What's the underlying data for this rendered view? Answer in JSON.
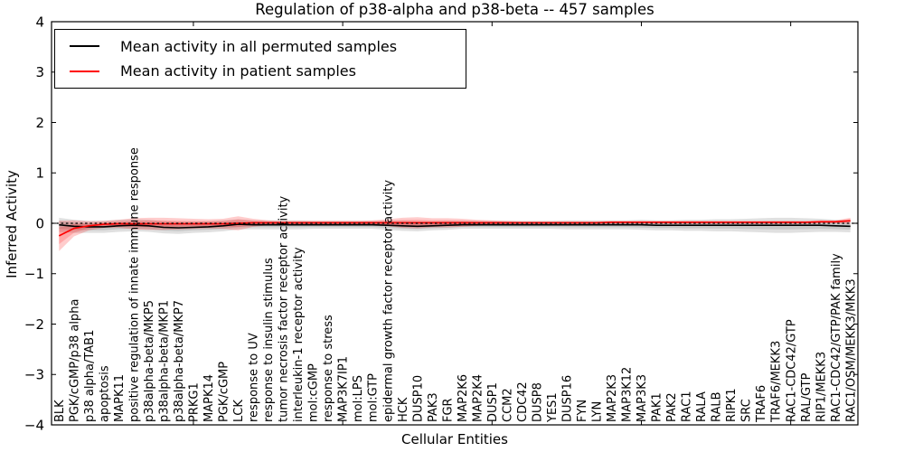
{
  "chart_data": {
    "type": "line",
    "title": "Regulation of p38-alpha and p38-beta -- 457 samples",
    "xlabel": "Cellular Entities",
    "ylabel": "Inferred Activity",
    "ylim": [
      -4,
      4
    ],
    "yticks": [
      -4,
      -3,
      -2,
      -1,
      0,
      1,
      2,
      3,
      4
    ],
    "x_major_tick_indices": [
      9,
      19,
      29,
      39,
      49
    ],
    "grid": false,
    "legend_position": "upper left",
    "zero_line": {
      "y": 0,
      "style": "dashed",
      "color": "#000000"
    },
    "categories": [
      "BLK",
      "PGK/cGMP/p38 alpha",
      "p38 alpha/TAB1",
      "apoptosis",
      "MAPK11",
      "positive regulation of innate immune response",
      "p38alpha-beta/MKP5",
      "p38alpha-beta/MKP1",
      "p38alpha-beta/MKP7",
      "PRKG1",
      "MAPK14",
      "PGK/cGMP",
      "LCK",
      "response to UV",
      "response to insulin stimulus",
      "tumor necrosis factor receptor activity",
      "interleukin-1 receptor activity",
      "mol:cGMP",
      "response to stress",
      "MAP3K7IP1",
      "mol:LPS",
      "mol:GTP",
      "epidermal growth factor receptor activity",
      "HCK",
      "DUSP10",
      "PAK3",
      "FGR",
      "MAP2K6",
      "MAP2K4",
      "DUSP1",
      "CCM2",
      "CDC42",
      "DUSP8",
      "YES1",
      "DUSP16",
      "FYN",
      "LYN",
      "MAP2K3",
      "MAP3K12",
      "MAP3K3",
      "PAK1",
      "PAK2",
      "RAC1",
      "RALA",
      "RALB",
      "RIPK1",
      "SRC",
      "TRAF6",
      "TRAF6/MEKK3",
      "RAC1-CDC42/GTP",
      "RAL/GTP",
      "RIP1/MEKK3",
      "RAC1-CDC42/GTP/PAK family",
      "RAC1/OSM/MEKK3/MKK3"
    ],
    "series": [
      {
        "name": "Mean activity in all permuted samples",
        "color": "#000000",
        "band_color": "#000000",
        "band_alpha": 0.12,
        "values": [
          -0.03,
          -0.06,
          -0.07,
          -0.07,
          -0.05,
          -0.04,
          -0.05,
          -0.08,
          -0.09,
          -0.08,
          -0.07,
          -0.05,
          -0.02,
          -0.03,
          -0.03,
          -0.03,
          -0.03,
          -0.03,
          -0.03,
          -0.03,
          -0.03,
          -0.03,
          -0.04,
          -0.05,
          -0.06,
          -0.05,
          -0.04,
          -0.03,
          -0.03,
          -0.03,
          -0.03,
          -0.03,
          -0.03,
          -0.03,
          -0.03,
          -0.03,
          -0.03,
          -0.03,
          -0.03,
          -0.03,
          -0.04,
          -0.04,
          -0.04,
          -0.04,
          -0.04,
          -0.04,
          -0.04,
          -0.04,
          -0.04,
          -0.04,
          -0.04,
          -0.04,
          -0.05,
          -0.06
        ],
        "std": [
          0.14,
          0.13,
          0.12,
          0.12,
          0.12,
          0.12,
          0.12,
          0.12,
          0.12,
          0.11,
          0.11,
          0.11,
          0.1,
          0.09,
          0.09,
          0.09,
          0.09,
          0.08,
          0.08,
          0.08,
          0.08,
          0.08,
          0.09,
          0.1,
          0.1,
          0.09,
          0.09,
          0.08,
          0.08,
          0.08,
          0.08,
          0.08,
          0.08,
          0.08,
          0.09,
          0.09,
          0.09,
          0.09,
          0.09,
          0.1,
          0.1,
          0.1,
          0.11,
          0.11,
          0.12,
          0.12,
          0.13,
          0.14,
          0.15,
          0.15,
          0.14,
          0.13,
          0.12,
          0.12
        ]
      },
      {
        "name": "Mean activity in patient samples",
        "color": "#ff0000",
        "band_color": "#ff0000",
        "band_alpha": 0.2,
        "values": [
          -0.25,
          -0.1,
          -0.05,
          -0.02,
          -0.01,
          -0.01,
          -0.01,
          -0.01,
          -0.01,
          -0.01,
          -0.01,
          -0.01,
          0.0,
          0.01,
          0.01,
          0.01,
          0.01,
          0.01,
          0.01,
          0.01,
          0.01,
          0.01,
          0.01,
          0.01,
          0.01,
          0.01,
          0.01,
          0.01,
          0.01,
          0.01,
          0.01,
          0.01,
          0.01,
          0.01,
          0.01,
          0.01,
          0.01,
          0.02,
          0.02,
          0.02,
          0.02,
          0.02,
          0.02,
          0.02,
          0.02,
          0.02,
          0.02,
          0.02,
          0.02,
          0.02,
          0.02,
          0.03,
          0.03,
          0.05
        ],
        "std": [
          0.3,
          0.16,
          0.09,
          0.07,
          0.08,
          0.11,
          0.12,
          0.12,
          0.11,
          0.1,
          0.09,
          0.1,
          0.14,
          0.08,
          0.05,
          0.04,
          0.04,
          0.04,
          0.04,
          0.04,
          0.04,
          0.05,
          0.07,
          0.1,
          0.11,
          0.09,
          0.09,
          0.08,
          0.06,
          0.05,
          0.04,
          0.03,
          0.03,
          0.03,
          0.03,
          0.03,
          0.03,
          0.03,
          0.03,
          0.03,
          0.03,
          0.03,
          0.03,
          0.03,
          0.03,
          0.03,
          0.03,
          0.03,
          0.03,
          0.03,
          0.03,
          0.03,
          0.03,
          0.06
        ]
      }
    ]
  }
}
